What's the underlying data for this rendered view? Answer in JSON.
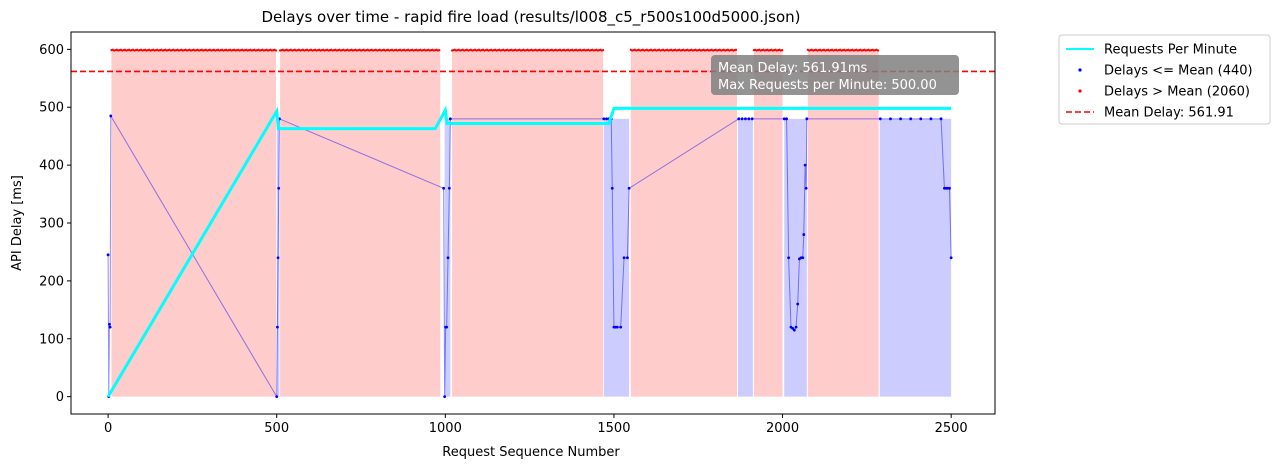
{
  "chart_data": {
    "type": "line",
    "title": "Delays over time - rapid fire load (results/l008_c5_r500s100d5000.json)",
    "xlabel": "Request Sequence Number",
    "ylabel": "API Delay [ms]",
    "xlim": [
      -110,
      2630
    ],
    "ylim": [
      -30,
      630
    ],
    "xticks": [
      0,
      500,
      1000,
      1500,
      2000,
      2500
    ],
    "yticks": [
      0,
      100,
      200,
      300,
      400,
      500,
      600
    ],
    "grid": false,
    "legend_position": "outside-upper-right",
    "mean_delay": 561.91,
    "annotation": {
      "line1": "Mean Delay: 561.91ms",
      "line2": "Max Requests per Minute:  500.00"
    },
    "legend": [
      {
        "label": "Requests Per Minute",
        "kind": "line",
        "color": "#00ffff"
      },
      {
        "label": "Delays <= Mean (440)",
        "kind": "dot",
        "color": "#0000ff"
      },
      {
        "label": "Delays > Mean (2060)",
        "kind": "dot",
        "color": "#ff0000"
      },
      {
        "label": "Mean Delay: 561.91",
        "kind": "dashed",
        "color": "#ff0000"
      }
    ],
    "series": [
      {
        "name": "Requests Per Minute",
        "color": "#00ffff",
        "x": [
          0,
          500,
          505,
          970,
          1000,
          1005,
          1485,
          1500,
          2500
        ],
        "y": [
          0,
          493,
          463,
          463,
          495,
          472,
          472,
          498,
          498
        ]
      },
      {
        "name": "Delays <= Mean (440)",
        "color": "#0000ff",
        "x": [
          0,
          2,
          4,
          6,
          8,
          500,
          502,
          504,
          506,
          508,
          995,
          998,
          1001,
          1004,
          1008,
          1012,
          1015,
          1470,
          1478,
          1485,
          1492,
          1495,
          1500,
          1505,
          1510,
          1520,
          1530,
          1540,
          1545,
          1870,
          1880,
          1890,
          1900,
          1910,
          2005,
          2012,
          2018,
          2025,
          2030,
          2035,
          2040,
          2045,
          2050,
          2055,
          2060,
          2063,
          2067,
          2070,
          2072,
          2290,
          2320,
          2350,
          2380,
          2410,
          2440,
          2470,
          2480,
          2485,
          2490,
          2495,
          2500
        ],
        "y": [
          245,
          0,
          125,
          120,
          485,
          0,
          120,
          240,
          360,
          480,
          360,
          0,
          120,
          120,
          240,
          360,
          480,
          480,
          480,
          480,
          480,
          360,
          120,
          120,
          120,
          120,
          240,
          240,
          360,
          480,
          480,
          480,
          480,
          480,
          480,
          480,
          240,
          120,
          118,
          115,
          120,
          160,
          238,
          240,
          240,
          280,
          400,
          360,
          480,
          480,
          480,
          480,
          480,
          480,
          480,
          480,
          360,
          360,
          360,
          360,
          240
        ]
      },
      {
        "name": "Delays > Mean (2060)",
        "color": "#ff0000",
        "segments": [
          [
            10,
            498
          ],
          [
            510,
            985
          ],
          [
            1020,
            1468
          ],
          [
            1550,
            1865
          ],
          [
            1915,
            2000
          ],
          [
            2075,
            2285
          ]
        ],
        "y": 598
      }
    ],
    "fill_regions": [
      {
        "x0": 10,
        "x1": 498,
        "color": "red"
      },
      {
        "x0": 510,
        "x1": 985,
        "color": "red"
      },
      {
        "x0": 1020,
        "x1": 1468,
        "color": "red"
      },
      {
        "x0": 1550,
        "x1": 1865,
        "color": "red"
      },
      {
        "x0": 1915,
        "x1": 2000,
        "color": "red"
      },
      {
        "x0": 2075,
        "x1": 2285,
        "color": "red"
      },
      {
        "x0": 500,
        "x1": 508,
        "color": "blue"
      },
      {
        "x0": 998,
        "x1": 1015,
        "color": "blue"
      },
      {
        "x0": 1470,
        "x1": 1545,
        "color": "blue"
      },
      {
        "x0": 1868,
        "x1": 1912,
        "color": "blue"
      },
      {
        "x0": 2005,
        "x1": 2072,
        "color": "blue"
      },
      {
        "x0": 2288,
        "x1": 2500,
        "color": "blue"
      }
    ]
  }
}
